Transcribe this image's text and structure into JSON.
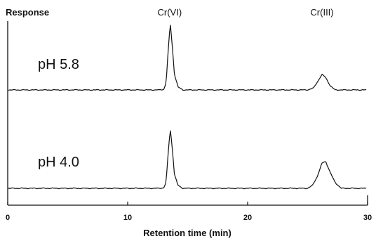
{
  "chart_data": {
    "type": "line",
    "xlabel": "Retention time (min)",
    "ylabel": "Response",
    "xlim": [
      0,
      30
    ],
    "x_ticks": [
      "0",
      "10",
      "20",
      "30"
    ],
    "peak_labels": [
      {
        "name": "Cr(VI)",
        "x": 13.5
      },
      {
        "name": "Cr(III)",
        "x": 26.2
      }
    ],
    "grid": false,
    "series": [
      {
        "name": "pH 5.8",
        "x": [
          0,
          12.6,
          13.0,
          13.2,
          13.4,
          13.55,
          13.7,
          13.9,
          14.2,
          14.6,
          15.5,
          25.0,
          25.5,
          25.9,
          26.2,
          26.5,
          26.9,
          27.3,
          30
        ],
        "y": [
          0,
          0,
          0.2,
          3.5,
          22,
          35,
          24,
          8,
          1.5,
          0,
          0,
          0,
          1,
          5,
          8,
          6.5,
          2,
          0,
          0
        ]
      },
      {
        "name": "pH 4.0",
        "x": [
          0,
          12.6,
          13.0,
          13.2,
          13.4,
          13.55,
          13.7,
          13.9,
          14.2,
          14.6,
          15.5,
          25.0,
          25.4,
          25.8,
          26.2,
          26.5,
          26.9,
          27.3,
          27.8,
          30
        ],
        "y": [
          0,
          0,
          0.2,
          3,
          20,
          31,
          22,
          7,
          1.5,
          0,
          0,
          0,
          1.5,
          6,
          13,
          14,
          8,
          3,
          0,
          0
        ]
      }
    ]
  }
}
